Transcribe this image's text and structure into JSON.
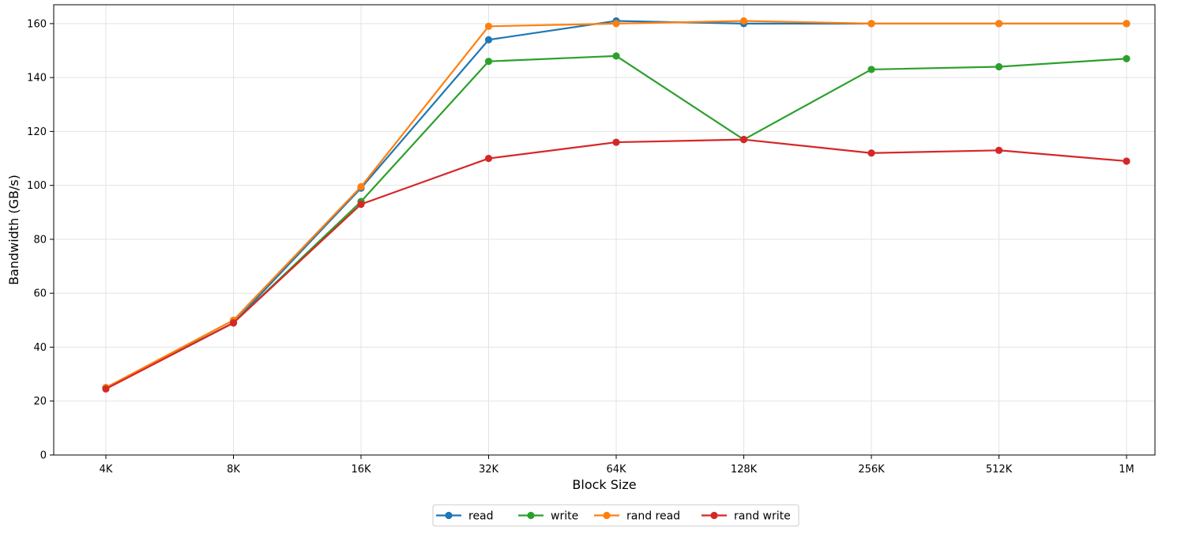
{
  "chart_data": {
    "type": "line",
    "title": "",
    "xlabel": "Block Size",
    "ylabel": "Bandwidth (GB/s)",
    "categories": [
      "4K",
      "8K",
      "16K",
      "32K",
      "64K",
      "128K",
      "256K",
      "512K",
      "1M"
    ],
    "ylim": [
      0,
      167
    ],
    "yticks": [
      0,
      20,
      40,
      60,
      80,
      100,
      120,
      140,
      160
    ],
    "grid": true,
    "legend_position": "bottom-center",
    "series": [
      {
        "name": "read",
        "color": "#1f77b4",
        "values": [
          25,
          49,
          99,
          154,
          161,
          160,
          160,
          160,
          160
        ]
      },
      {
        "name": "write",
        "color": "#2ca02c",
        "values": [
          25,
          49,
          94,
          146,
          148,
          117,
          143,
          144,
          147
        ]
      },
      {
        "name": "rand read",
        "color": "#ff7f0e",
        "values": [
          25,
          50,
          99.5,
          159,
          160,
          161,
          160,
          160,
          160
        ]
      },
      {
        "name": "rand write",
        "color": "#d62728",
        "values": [
          24.5,
          49,
          93,
          110,
          116,
          117,
          112,
          113,
          109
        ]
      }
    ]
  }
}
